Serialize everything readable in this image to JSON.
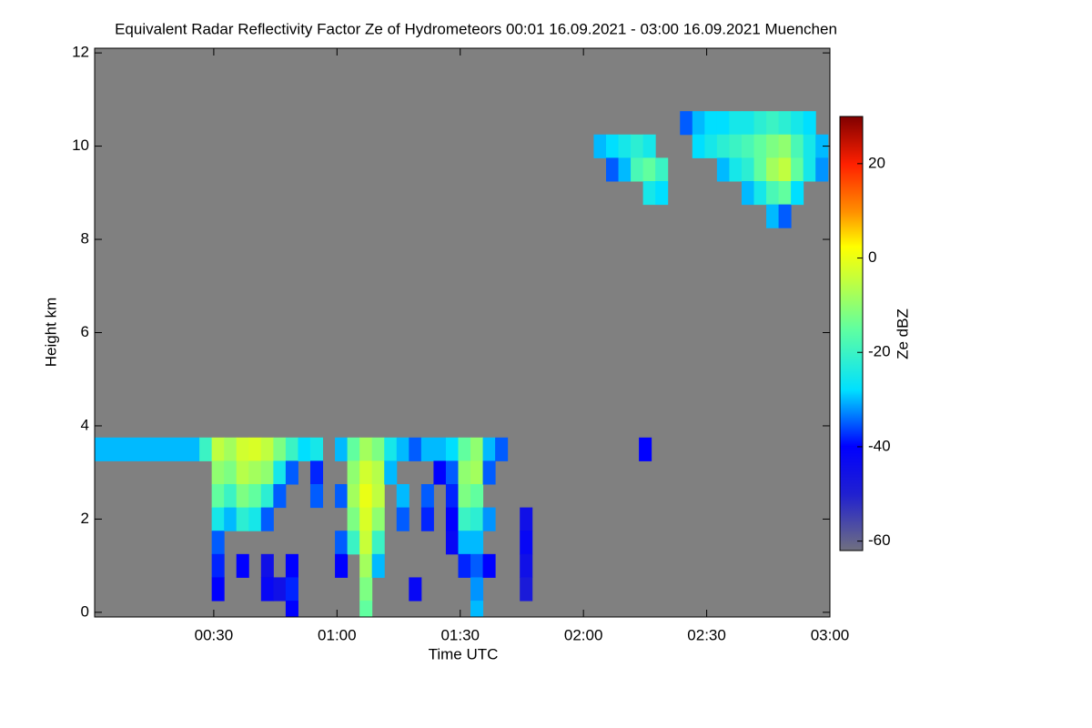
{
  "chart_data": {
    "type": "heatmap",
    "title": "Equivalent Radar Reflectivity Factor Ze of Hydrometeors   00:01 16.09.2021 - 03:00 16.09.2021 Muenchen",
    "x_label": "Time UTC",
    "y_label": "Height km",
    "colorbar_label": "Ze dBZ",
    "xlim": [
      1,
      180
    ],
    "ylim": [
      -0.1,
      12.1
    ],
    "clim": [
      -62,
      30
    ],
    "xticks": [
      {
        "value": 30,
        "label": "00:30"
      },
      {
        "value": 60,
        "label": "01:00"
      },
      {
        "value": 90,
        "label": "01:30"
      },
      {
        "value": 120,
        "label": "02:00"
      },
      {
        "value": 150,
        "label": "02:30"
      },
      {
        "value": 180,
        "label": "03:00"
      }
    ],
    "yticks": [
      0,
      2,
      4,
      6,
      8,
      10,
      12
    ],
    "cticks": [
      -60,
      -40,
      -20,
      0,
      20
    ],
    "background": "#808080",
    "x": [
      1,
      4,
      7,
      10,
      13,
      16,
      19,
      22,
      25,
      28,
      31,
      31,
      31,
      31,
      31,
      31,
      31,
      34,
      34,
      34,
      34,
      37,
      37,
      37,
      37,
      37,
      40,
      40,
      40,
      40,
      43,
      43,
      43,
      43,
      43,
      43,
      46,
      46,
      46,
      46,
      49,
      49,
      49,
      49,
      49,
      52,
      55,
      55,
      55,
      61,
      61,
      61,
      61,
      64,
      64,
      64,
      64,
      64,
      67,
      67,
      67,
      67,
      67,
      67,
      67,
      67,
      70,
      70,
      70,
      70,
      70,
      70,
      73,
      73,
      76,
      76,
      76,
      79,
      79,
      82,
      82,
      82,
      85,
      85,
      88,
      88,
      88,
      88,
      88,
      91,
      91,
      91,
      91,
      91,
      91,
      94,
      94,
      94,
      94,
      94,
      94,
      94,
      94,
      97,
      97,
      97,
      97,
      100,
      106,
      106,
      106,
      106,
      135,
      124,
      127,
      127,
      130,
      130,
      133,
      133,
      136,
      136,
      136,
      139,
      139,
      145,
      148,
      148,
      151,
      151,
      154,
      154,
      154,
      157,
      157,
      157,
      160,
      160,
      160,
      160,
      163,
      163,
      163,
      163,
      166,
      166,
      166,
      166,
      166,
      169,
      169,
      169,
      169,
      169,
      172,
      172,
      172,
      172,
      175,
      175,
      175,
      178,
      178
    ],
    "y": [
      3.5,
      3.5,
      3.5,
      3.5,
      3.5,
      3.5,
      3.5,
      3.5,
      3.5,
      3.5,
      3.5,
      3,
      2.5,
      2,
      1.5,
      1,
      0.5,
      3.5,
      3,
      2.5,
      2,
      3.5,
      3,
      2.5,
      2,
      1,
      3.5,
      3,
      2.5,
      2,
      3.5,
      3,
      2.5,
      2,
      1,
      0.5,
      3.5,
      3,
      2.5,
      0.5,
      3.5,
      3,
      1,
      0.5,
      0,
      3.5,
      3.5,
      3,
      2.5,
      3.5,
      2.5,
      1.5,
      1,
      3.5,
      3,
      2.5,
      2,
      1.5,
      3.5,
      3,
      2.5,
      2,
      1.5,
      1,
      0.5,
      0,
      3.5,
      3,
      2.5,
      2,
      1.5,
      1,
      3.5,
      3,
      3.5,
      2.5,
      2,
      3.5,
      0.5,
      3.5,
      2.5,
      2,
      3.5,
      3,
      3.5,
      3,
      2.5,
      2,
      1.5,
      3.5,
      3,
      2.5,
      2,
      1.5,
      1,
      3.5,
      3,
      2.5,
      2,
      1.5,
      1,
      0.5,
      0,
      3.5,
      3,
      2,
      1,
      3.5,
      2,
      1.5,
      1,
      0.5,
      3.5,
      10,
      10,
      9.5,
      10,
      9.5,
      10,
      9.5,
      10,
      9.5,
      9,
      9.5,
      9,
      10.5,
      10.5,
      10,
      10.5,
      10,
      10.5,
      10,
      9.5,
      10.5,
      10,
      9.5,
      10.5,
      10,
      9.5,
      9,
      10.5,
      10,
      9.5,
      9,
      10.5,
      10,
      9.5,
      9,
      8.5,
      10.5,
      10,
      9.5,
      9,
      8.5,
      10.5,
      10,
      9.5,
      9,
      10.5,
      10,
      9.5,
      10,
      9.5
    ],
    "values": [
      -30,
      -30,
      -30,
      -30,
      -30,
      -30,
      -30,
      -30,
      -30,
      -20,
      -5,
      -10,
      -15,
      -25,
      -35,
      -38,
      -40,
      -8,
      -12,
      -20,
      -30,
      -3,
      -6,
      -12,
      -22,
      -40,
      -2,
      -8,
      -15,
      -25,
      -5,
      -10,
      -22,
      -35,
      -45,
      -42,
      -12,
      -25,
      -35,
      -45,
      -20,
      -35,
      -40,
      -38,
      -40,
      -28,
      -25,
      -38,
      -35,
      -30,
      -35,
      -35,
      -40,
      -15,
      -10,
      -8,
      -12,
      -20,
      -8,
      -3,
      0,
      -2,
      -4,
      -8,
      -12,
      -15,
      -12,
      -6,
      -5,
      -10,
      -20,
      -30,
      -25,
      -30,
      -30,
      -30,
      -35,
      -35,
      -42,
      -30,
      -35,
      -38,
      -30,
      -40,
      -28,
      -35,
      -38,
      -40,
      -42,
      -15,
      -10,
      -12,
      -20,
      -30,
      -38,
      -10,
      -8,
      -15,
      -22,
      -30,
      -35,
      -32,
      -30,
      -30,
      -35,
      -32,
      -40,
      -35,
      -45,
      -42,
      -45,
      -48,
      -40,
      -30,
      -28,
      -35,
      -25,
      -30,
      -22,
      -18,
      -25,
      -15,
      -25,
      -20,
      -28,
      -35,
      -30,
      -28,
      -28,
      -25,
      -28,
      -22,
      -30,
      -25,
      -20,
      -25,
      -25,
      -18,
      -22,
      -30,
      -22,
      -15,
      -15,
      -25,
      -20,
      -12,
      -8,
      -18,
      -30,
      -22,
      -10,
      -5,
      -15,
      -35,
      -25,
      -18,
      -15,
      -28,
      -28,
      -25,
      -25,
      -30,
      -32
    ]
  }
}
